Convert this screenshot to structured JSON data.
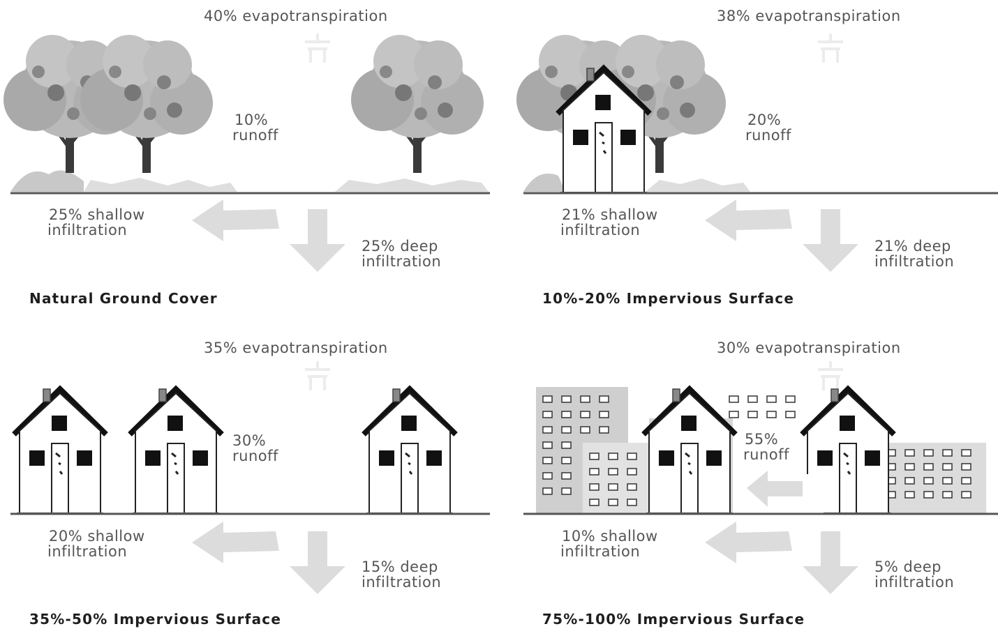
{
  "panels": [
    {
      "evapotranspiration": "40% evapotranspiration",
      "runoff_pct": "10%",
      "runoff_word": "runoff",
      "shallow_pct": "25% shallow",
      "shallow_word": "infiltration",
      "deep_pct": "25% deep",
      "deep_word": "infiltration",
      "caption": "Natural Ground Cover"
    },
    {
      "evapotranspiration": "38% evapotranspiration",
      "runoff_pct": "20%",
      "runoff_word": "runoff",
      "shallow_pct": "21% shallow",
      "shallow_word": "infiltration",
      "deep_pct": "21% deep",
      "deep_word": "infiltration",
      "caption": "10%-20% Impervious Surface"
    },
    {
      "evapotranspiration": "35% evapotranspiration",
      "runoff_pct": "30%",
      "runoff_word": "runoff",
      "shallow_pct": "20% shallow",
      "shallow_word": "infiltration",
      "deep_pct": "15% deep",
      "deep_word": "infiltration",
      "caption": "35%-50% Impervious Surface"
    },
    {
      "evapotranspiration": "30% evapotranspiration",
      "runoff_pct": "55%",
      "runoff_word": "runoff",
      "shallow_pct": "10% shallow",
      "shallow_word": "infiltration",
      "deep_pct": "5% deep",
      "deep_word": "infiltration",
      "caption": "75%-100% Impervious Surface"
    }
  ]
}
